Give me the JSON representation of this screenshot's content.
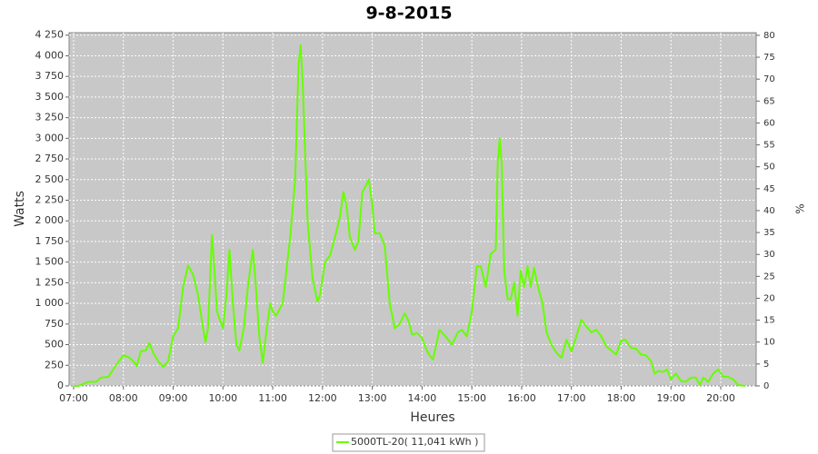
{
  "chart_data": {
    "type": "line",
    "title": "9-8-2015",
    "x_label": "Heures",
    "y_label": "Watts",
    "y2_label": "%",
    "x": [
      7.0,
      7.1,
      7.3,
      7.45,
      7.55,
      7.7,
      7.85,
      8.0,
      8.1,
      8.2,
      8.27,
      8.35,
      8.45,
      8.52,
      8.6,
      8.7,
      8.8,
      8.9,
      9.0,
      9.1,
      9.2,
      9.3,
      9.4,
      9.5,
      9.6,
      9.65,
      9.7,
      9.78,
      9.83,
      9.88,
      10.0,
      10.07,
      10.13,
      10.2,
      10.27,
      10.33,
      10.42,
      10.5,
      10.6,
      10.65,
      10.73,
      10.8,
      10.88,
      10.95,
      11.0,
      11.07,
      11.2,
      11.35,
      11.45,
      11.52,
      11.56,
      11.6,
      11.7,
      11.8,
      11.9,
      11.95,
      12.05,
      12.15,
      12.25,
      12.35,
      12.42,
      12.48,
      12.55,
      12.65,
      12.72,
      12.8,
      12.85,
      12.93,
      13.0,
      13.05,
      13.15,
      13.25,
      13.35,
      13.45,
      13.55,
      13.65,
      13.72,
      13.8,
      13.9,
      14.0,
      14.08,
      14.15,
      14.22,
      14.35,
      14.5,
      14.6,
      14.72,
      14.8,
      14.9,
      15.0,
      15.1,
      15.18,
      15.28,
      15.38,
      15.48,
      15.52,
      15.56,
      15.6,
      15.65,
      15.72,
      15.78,
      15.85,
      15.92,
      15.98,
      16.05,
      16.12,
      16.18,
      16.25,
      16.33,
      16.42,
      16.5,
      16.6,
      16.7,
      16.8,
      16.9,
      17.0,
      17.1,
      17.2,
      17.3,
      17.4,
      17.5,
      17.6,
      17.7,
      17.8,
      17.9,
      18.0,
      18.08,
      18.2,
      18.3,
      18.4,
      18.5,
      18.6,
      18.67,
      18.75,
      18.85,
      18.92,
      19.0,
      19.1,
      19.2,
      19.3,
      19.4,
      19.5,
      19.58,
      19.65,
      19.75,
      19.85,
      19.95,
      20.05,
      20.15,
      20.25,
      20.35,
      20.5
    ],
    "series": [
      {
        "name": "5000TL-20( 11,041 kWh )",
        "color": "#66ff00",
        "values": [
          0,
          0,
          50,
          50,
          100,
          110,
          250,
          370,
          350,
          300,
          240,
          420,
          430,
          520,
          400,
          300,
          230,
          300,
          600,
          700,
          1200,
          1460,
          1350,
          1100,
          700,
          530,
          700,
          1830,
          1400,
          900,
          700,
          1100,
          1650,
          1000,
          500,
          430,
          700,
          1200,
          1650,
          1300,
          600,
          280,
          700,
          1000,
          900,
          850,
          1000,
          1800,
          2500,
          3900,
          4130,
          3700,
          2000,
          1300,
          1020,
          1100,
          1500,
          1580,
          1800,
          2050,
          2350,
          2200,
          1800,
          1650,
          1750,
          2350,
          2400,
          2500,
          2200,
          1850,
          1850,
          1700,
          1000,
          700,
          750,
          880,
          800,
          620,
          640,
          580,
          450,
          370,
          320,
          680,
          580,
          500,
          650,
          680,
          600,
          900,
          1450,
          1450,
          1200,
          1600,
          1650,
          2700,
          3000,
          2700,
          1400,
          1050,
          1050,
          1250,
          850,
          1400,
          1200,
          1450,
          1200,
          1430,
          1200,
          1000,
          650,
          500,
          400,
          340,
          560,
          420,
          600,
          800,
          720,
          650,
          680,
          600,
          480,
          430,
          380,
          550,
          560,
          460,
          450,
          380,
          370,
          300,
          150,
          180,
          170,
          200,
          80,
          150,
          60,
          50,
          100,
          100,
          10,
          100,
          50,
          150,
          200,
          110,
          110,
          80,
          10,
          0
        ]
      }
    ],
    "xlim": [
      6.909,
      20.712
    ],
    "xticks": [
      {
        "value": 7,
        "label": "07:00"
      },
      {
        "value": 8,
        "label": "08:00"
      },
      {
        "value": 9,
        "label": "09:00"
      },
      {
        "value": 10,
        "label": "10:00"
      },
      {
        "value": 11,
        "label": "11:00"
      },
      {
        "value": 12,
        "label": "12:00"
      },
      {
        "value": 13,
        "label": "13:00"
      },
      {
        "value": 14,
        "label": "14:00"
      },
      {
        "value": 15,
        "label": "15:00"
      },
      {
        "value": 16,
        "label": "16:00"
      },
      {
        "value": 17,
        "label": "17:00"
      },
      {
        "value": 18,
        "label": "18:00"
      },
      {
        "value": 19,
        "label": "19:00"
      },
      {
        "value": 20,
        "label": "20:00"
      }
    ],
    "ylim": [
      0,
      4280
    ],
    "yticks": [
      0,
      250,
      500,
      750,
      {
        "value": 1000,
        "label": "1 000"
      },
      {
        "value": 1250,
        "label": "1 250"
      },
      {
        "value": 1500,
        "label": "1 500"
      },
      {
        "value": 1750,
        "label": "1 750"
      },
      {
        "value": 2000,
        "label": "2 000"
      },
      {
        "value": 2250,
        "label": "2 250"
      },
      {
        "value": 2500,
        "label": "2 500"
      },
      {
        "value": 2750,
        "label": "2 750"
      },
      {
        "value": 3000,
        "label": "3 000"
      },
      {
        "value": 3250,
        "label": "3 250"
      },
      {
        "value": 3500,
        "label": "3 500"
      },
      {
        "value": 3750,
        "label": "3 750"
      },
      {
        "value": 4000,
        "label": "4 000"
      },
      {
        "value": 4250,
        "label": "4 250"
      }
    ],
    "y2lim": [
      0,
      80.6
    ],
    "y2ticks": [
      0,
      5,
      10,
      15,
      20,
      25,
      30,
      35,
      40,
      45,
      50,
      55,
      60,
      65,
      70,
      75,
      80
    ],
    "grid": true
  }
}
